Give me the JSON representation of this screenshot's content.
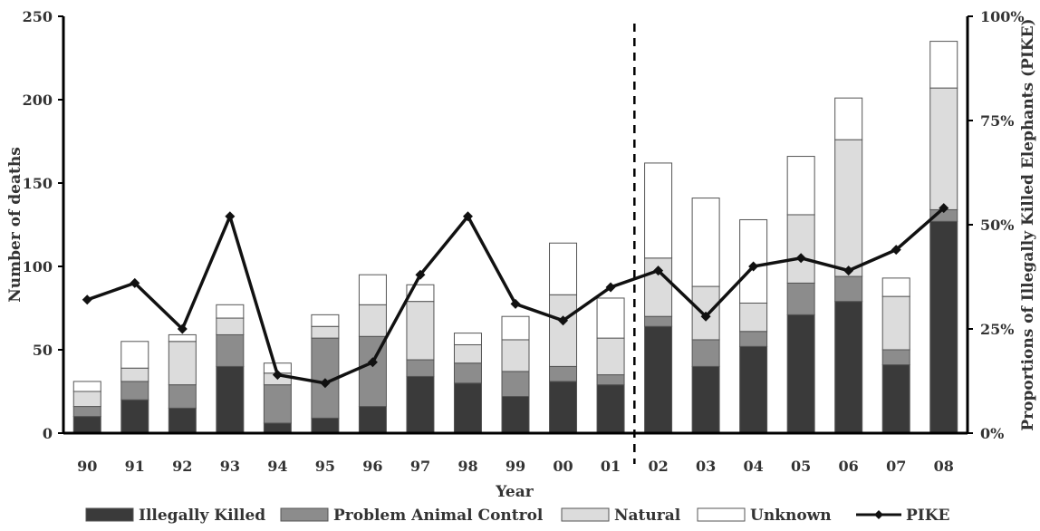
{
  "chart_data": {
    "type": "bar",
    "stacked": true,
    "categories": [
      "90",
      "91",
      "92",
      "93",
      "94",
      "95",
      "96",
      "97",
      "98",
      "99",
      "00",
      "01",
      "02",
      "03",
      "04",
      "05",
      "06",
      "07",
      "08"
    ],
    "series": [
      {
        "name": "Illegally Killed",
        "color": "#3a3a3a",
        "values": [
          10,
          20,
          15,
          40,
          6,
          9,
          16,
          34,
          30,
          22,
          31,
          29,
          64,
          40,
          52,
          71,
          79,
          41,
          127
        ]
      },
      {
        "name": "Problem Animal Control",
        "color": "#8c8c8c",
        "values": [
          6,
          11,
          14,
          19,
          23,
          48,
          42,
          10,
          12,
          15,
          9,
          6,
          6,
          16,
          9,
          19,
          15,
          9,
          7
        ]
      },
      {
        "name": "Natural",
        "color": "#dcdcdc",
        "values": [
          9,
          8,
          26,
          10,
          7,
          7,
          19,
          35,
          11,
          19,
          43,
          22,
          35,
          32,
          17,
          41,
          82,
          32,
          73
        ]
      },
      {
        "name": "Unknown",
        "color": "#ffffff",
        "values": [
          6,
          16,
          4,
          8,
          6,
          7,
          18,
          10,
          7,
          14,
          31,
          24,
          57,
          53,
          50,
          35,
          25,
          11,
          28
        ]
      }
    ],
    "line": {
      "name": "PIKE",
      "axis": "right",
      "values": [
        32,
        36,
        25,
        52,
        14,
        12,
        17,
        38,
        52,
        31,
        27,
        35,
        39,
        28,
        40,
        42,
        39,
        44,
        54
      ]
    },
    "xlabel": "Year",
    "ylabel": "Number of deaths",
    "y2label": "Proportions of Illegally Killed Elephants (PIKE)",
    "ylim": [
      0,
      250
    ],
    "y2lim": [
      0,
      100
    ],
    "yticks": [
      "0",
      "50",
      "100",
      "150",
      "200",
      "250"
    ],
    "y2ticks": [
      "0%",
      "25%",
      "50%",
      "75%",
      "100%"
    ],
    "divider_after_category": "01",
    "grid": false,
    "legend_position": "bottom"
  }
}
